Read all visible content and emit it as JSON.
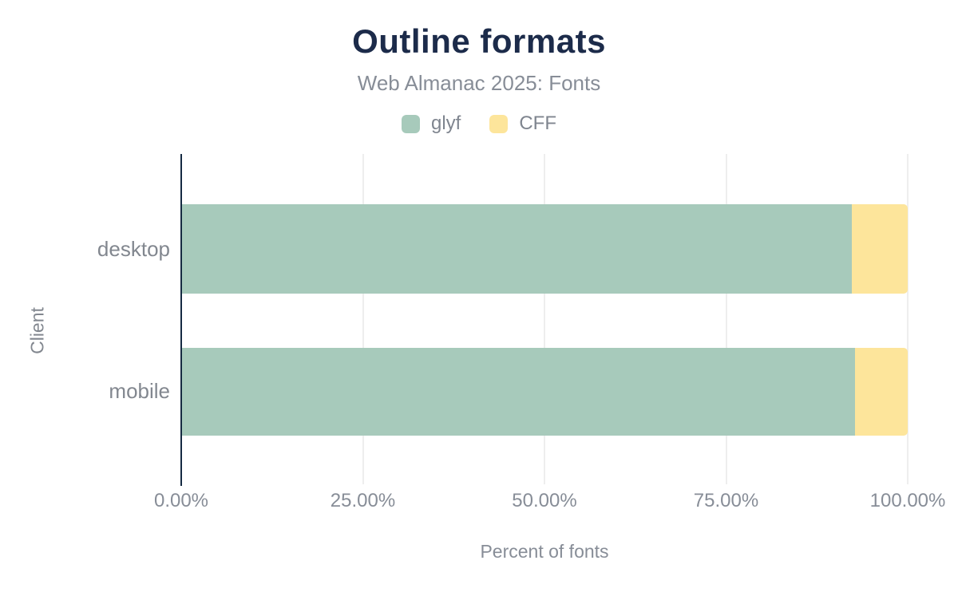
{
  "chart_data": {
    "type": "bar",
    "orientation": "horizontal",
    "stacked": true,
    "title": "Outline formats",
    "subtitle": "Web Almanac 2025: Fonts",
    "categories": [
      "desktop",
      "mobile"
    ],
    "series": [
      {
        "name": "glyf",
        "color": "#a7cabb",
        "values": [
          92.3,
          92.8
        ]
      },
      {
        "name": "CFF",
        "color": "#fde59b",
        "values": [
          7.7,
          7.2
        ]
      }
    ],
    "xlabel": "Percent of fonts",
    "ylabel": "Client",
    "xlim": [
      0,
      100
    ],
    "x_ticks": [
      "0.00%",
      "25.00%",
      "50.00%",
      "75.00%",
      "100.00%"
    ],
    "x_tick_values": [
      0,
      25,
      50,
      75,
      100
    ],
    "grid": "vertical",
    "legend_position": "top"
  },
  "colors": {
    "title": "#1c2b4a",
    "text_muted": "#878d97",
    "axis_line": "#152a42",
    "gridline": "#eeeeee",
    "background": "#ffffff"
  }
}
